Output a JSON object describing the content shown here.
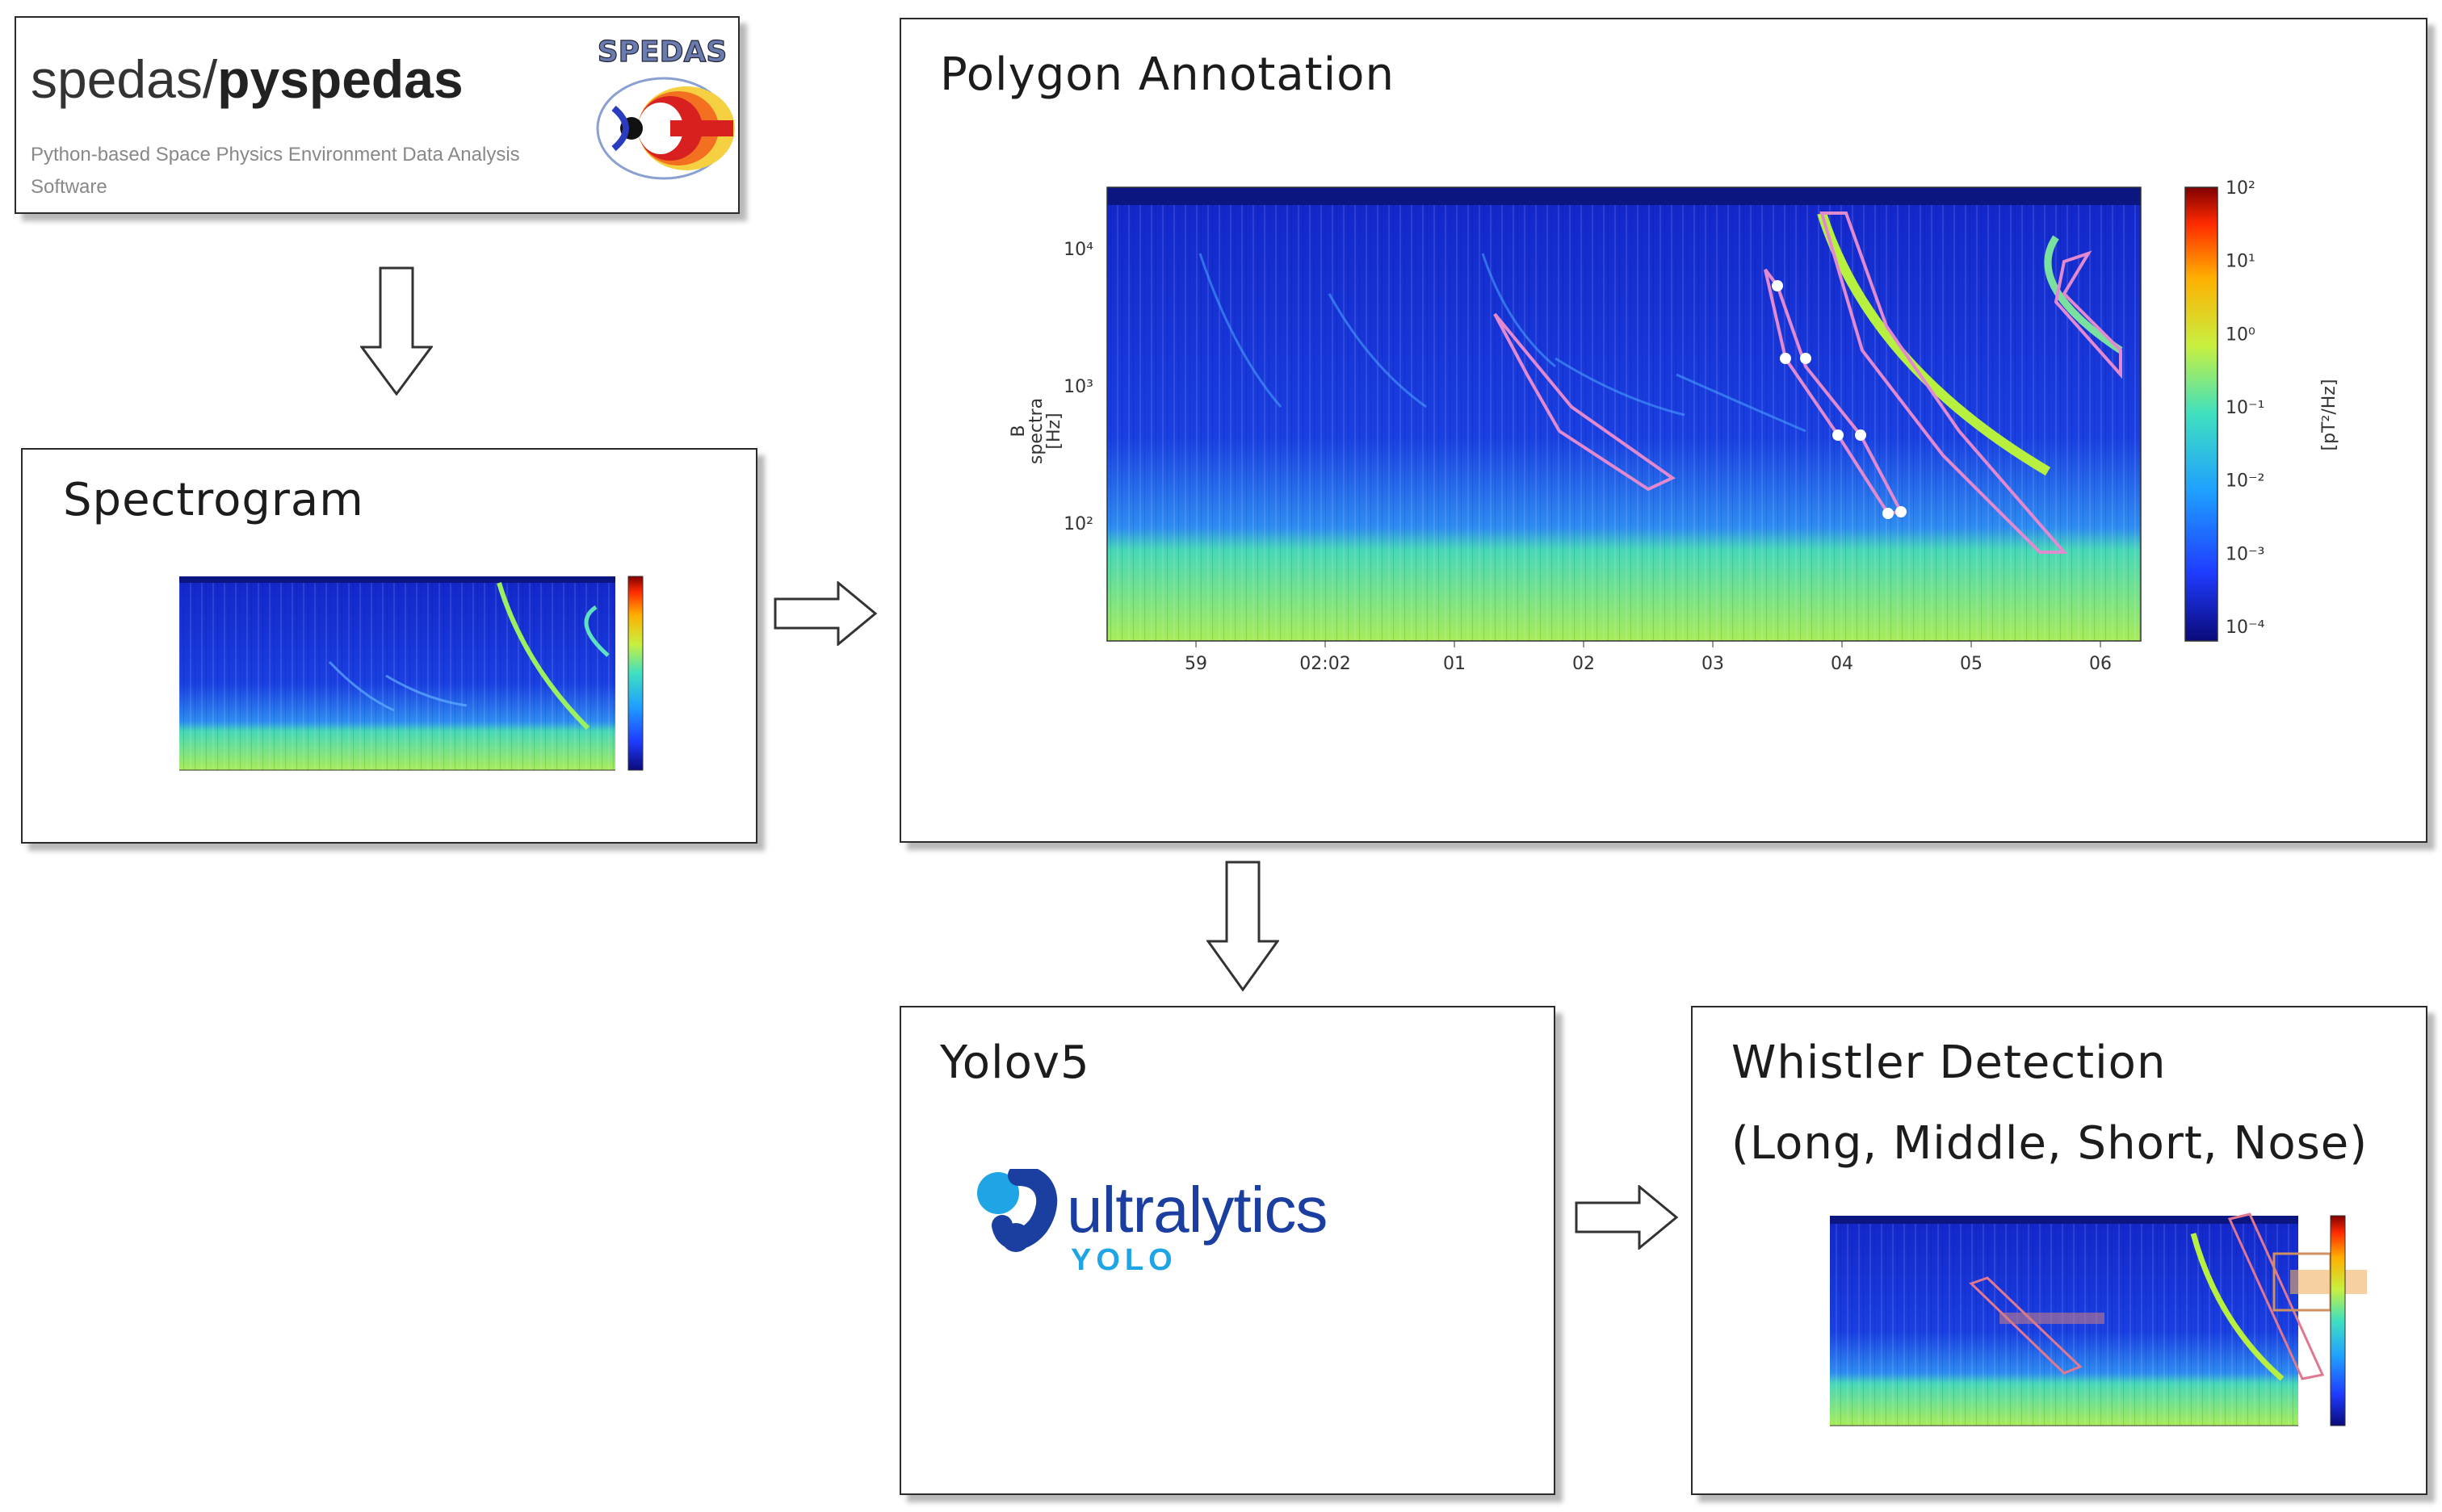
{
  "spedas": {
    "name_prefix": "spedas/",
    "name_bold": "pyspedas",
    "subtitle": "Python-based Space Physics Environment Data Analysis Software",
    "logo_text": "SPEDAS"
  },
  "spectrogram_box": {
    "title": "Spectrogram"
  },
  "polygon_box": {
    "title": "Polygon Annotation",
    "ylabel_line1": "B",
    "ylabel_line2": "spectra",
    "ylabel_line3": "[Hz]",
    "yticks": [
      "10⁴",
      "10³",
      "10²"
    ],
    "xticks": [
      "59",
      "02:02",
      "01",
      "02",
      "03",
      "04",
      "05",
      "06"
    ],
    "colorbar_ticks": [
      "10²",
      "10¹",
      "10⁰",
      "10⁻¹",
      "10⁻²",
      "10⁻³",
      "10⁻⁴"
    ],
    "colorbar_label": "[pT²/Hz]"
  },
  "yolo_box": {
    "title": "Yolov5",
    "brand_name": "ultralytics",
    "brand_sub": "YOLO"
  },
  "detection_box": {
    "title_line1": "Whistler Detection",
    "title_line2": "(Long, Middle, Short, Nose)"
  },
  "colors": {
    "spec_bg": "#1a2bd6",
    "spec_low_band": "#3fd6b4",
    "polygon": "#e28ad0",
    "ultralytics_blue": "#1b3fa0",
    "yolo_light": "#1fa4e6"
  }
}
